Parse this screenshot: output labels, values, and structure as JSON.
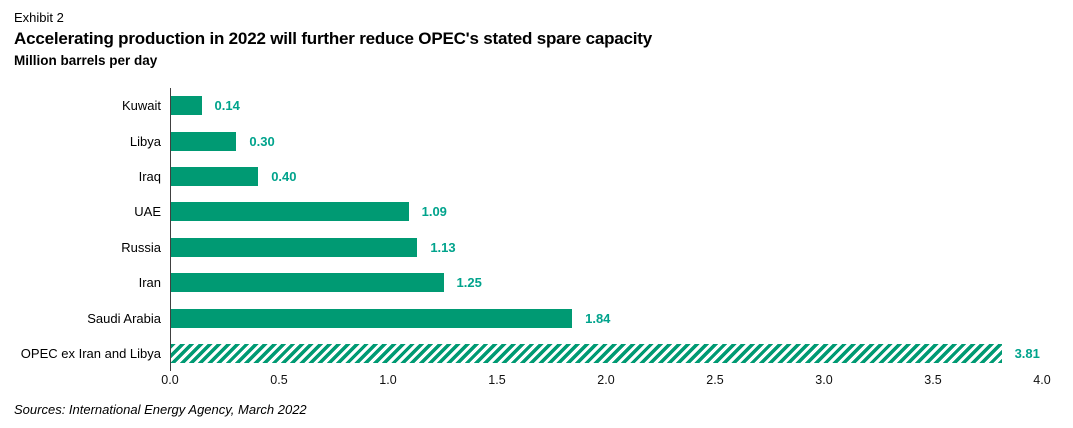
{
  "header": {
    "exhibit": "Exhibit 2",
    "title": "Accelerating production in 2022 will further reduce OPEC's stated spare capacity",
    "subtitle": "Million barrels per day"
  },
  "chart_data": {
    "type": "bar",
    "orientation": "horizontal",
    "title": "Accelerating production in 2022 will further reduce OPEC's stated spare capacity",
    "units_label": "Million barrels per day",
    "categories": [
      "Kuwait",
      "Libya",
      "Iraq",
      "UAE",
      "Russia",
      "Iran",
      "Saudi Arabia",
      "OPEC ex Iran and Libya"
    ],
    "values": [
      0.14,
      0.3,
      0.4,
      1.09,
      1.13,
      1.25,
      1.84,
      3.81
    ],
    "value_labels": [
      "0.14",
      "0.30",
      "0.40",
      "1.09",
      "1.13",
      "1.25",
      "1.84",
      "3.81"
    ],
    "hatched": [
      false,
      false,
      false,
      false,
      false,
      false,
      false,
      true
    ],
    "xlim": [
      0,
      4.0
    ],
    "x_ticks": [
      "0.0",
      "0.5",
      "1.0",
      "1.5",
      "2.0",
      "2.5",
      "3.0",
      "3.5",
      "4.0"
    ],
    "grid": false,
    "legend": false
  },
  "colors": {
    "bar": "#009A73",
    "value_label": "#00A38C",
    "axis": "#404040"
  },
  "footer": {
    "source": "Sources: International Energy Agency, March 2022"
  }
}
